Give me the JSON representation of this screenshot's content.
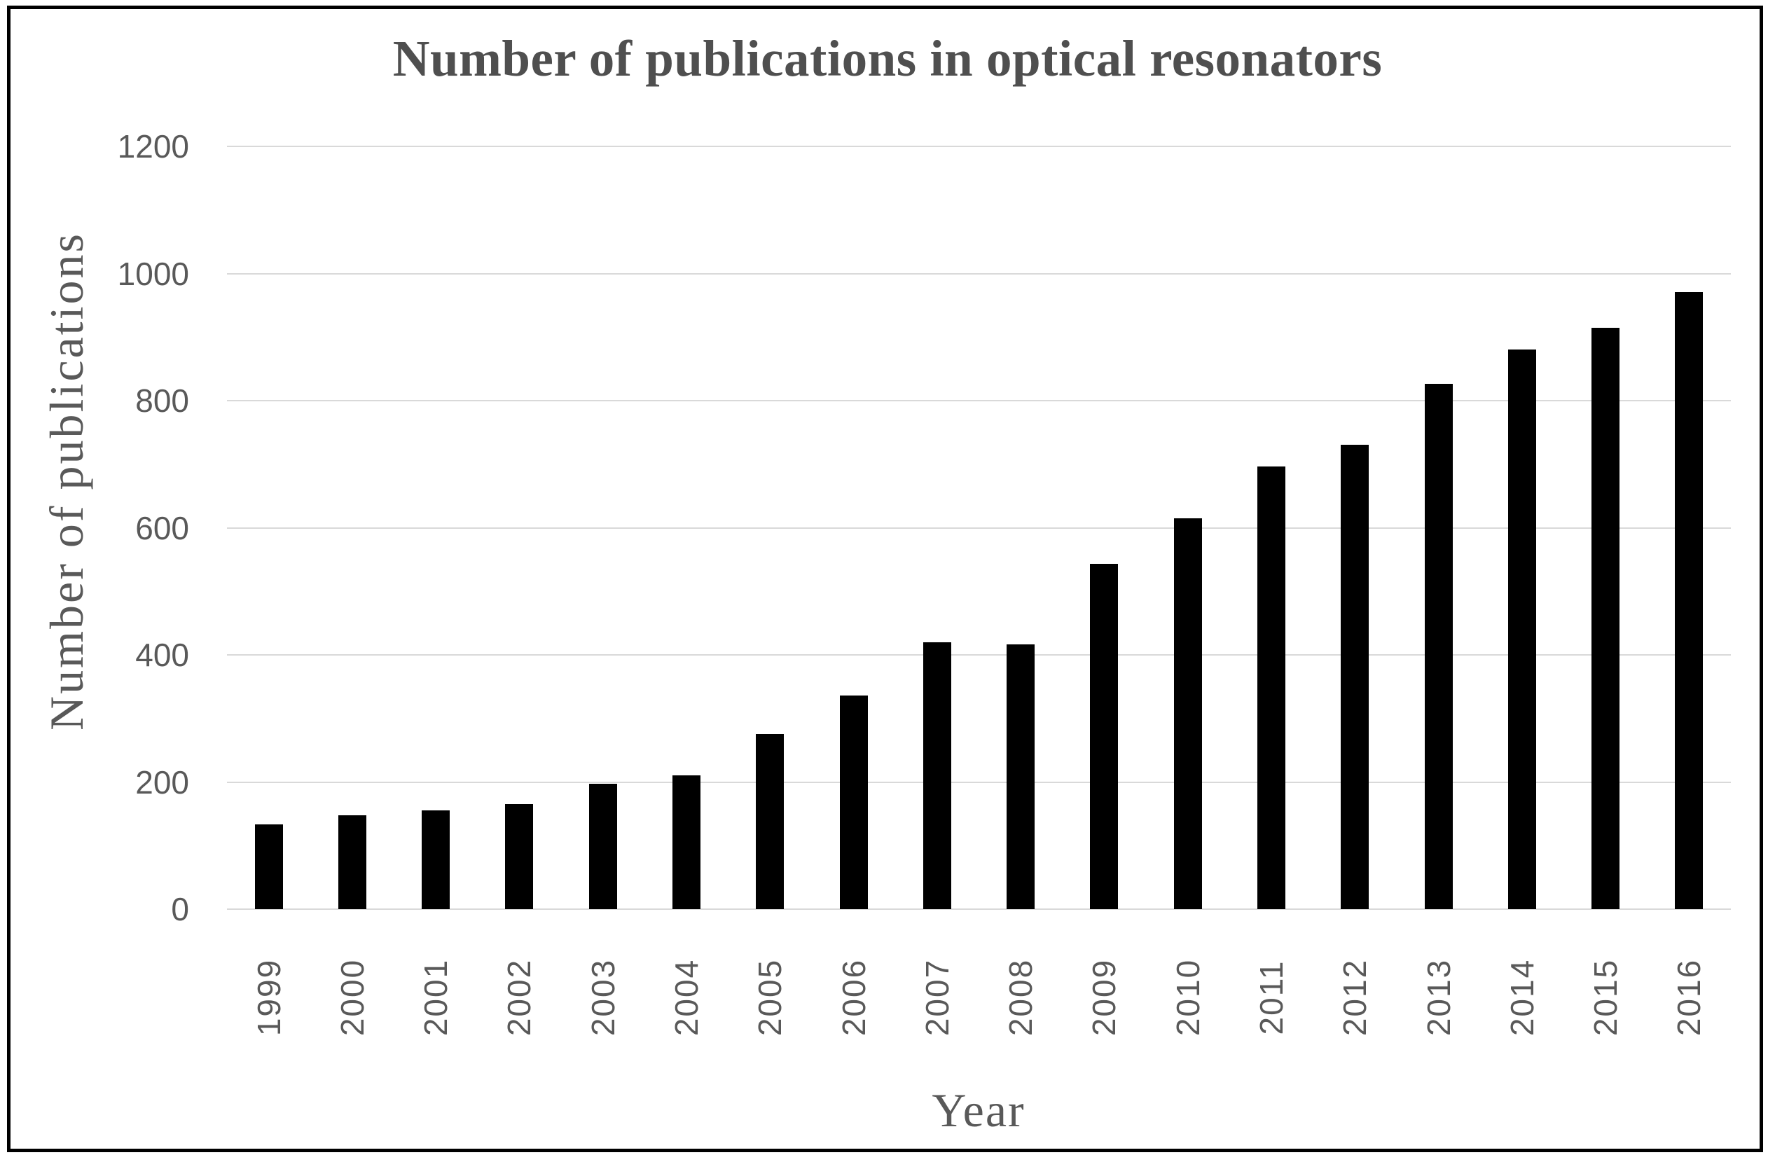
{
  "chart_data": {
    "type": "bar",
    "title": "Number of publications in optical resonators",
    "xlabel": "Year",
    "ylabel": "Number of publications",
    "categories": [
      "1999",
      "2000",
      "2001",
      "2002",
      "2003",
      "2004",
      "2005",
      "2006",
      "2007",
      "2008",
      "2009",
      "2010",
      "2011",
      "2012",
      "2013",
      "2014",
      "2015",
      "2016"
    ],
    "values": [
      133,
      148,
      155,
      165,
      197,
      211,
      276,
      336,
      420,
      416,
      543,
      615,
      696,
      731,
      826,
      880,
      915,
      971
    ],
    "ylim": [
      0,
      1200
    ],
    "y_ticks": [
      0,
      200,
      400,
      600,
      800,
      1000,
      1200
    ],
    "grid": "horizontal",
    "legend": "none",
    "colors": {
      "bar": "#000000",
      "gridline": "#d9d9d9",
      "tick_label": "#595959",
      "title": "#4f4f4f",
      "axis_label": "#595959",
      "frame_border": "#000000",
      "background": "#ffffff"
    }
  }
}
